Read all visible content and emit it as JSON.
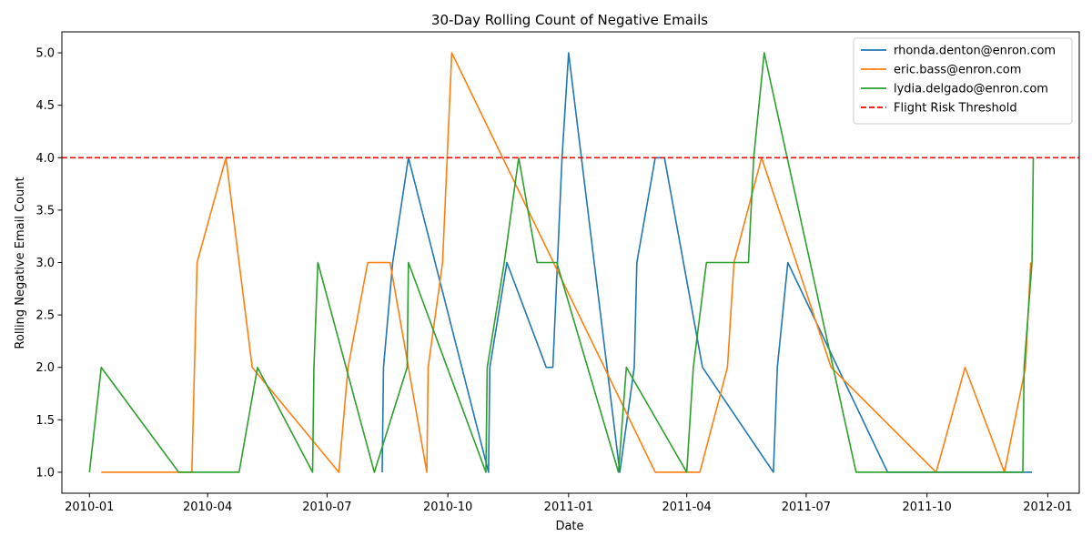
{
  "chart_data": {
    "type": "line",
    "title": "30-Day Rolling Count of Negative Emails",
    "title_icon": "",
    "xlabel": "Date",
    "ylabel": "Rolling Negative Email Count",
    "x_axis": "date",
    "xlim": [
      "2009-12-11",
      "2012-01-25"
    ],
    "ylim": [
      0.8,
      5.2
    ],
    "x_ticks": [
      "2010-01",
      "2010-04",
      "2010-07",
      "2010-10",
      "2011-01",
      "2011-04",
      "2011-07",
      "2011-10",
      "2012-01"
    ],
    "y_ticks": [
      "1.0",
      "1.5",
      "2.0",
      "2.5",
      "3.0",
      "3.5",
      "4.0",
      "4.5",
      "5.0"
    ],
    "grid": false,
    "legend_position": "top-right",
    "series": [
      {
        "name": "rhonda.denton@enron.com",
        "color": "#1f77b4",
        "points": [
          [
            "2010-08-12",
            1
          ],
          [
            "2010-08-13",
            2
          ],
          [
            "2010-08-20",
            3
          ],
          [
            "2010-09-01",
            4
          ],
          [
            "2010-11-01",
            1
          ],
          [
            "2010-11-02",
            2
          ],
          [
            "2010-11-15",
            3
          ],
          [
            "2010-12-15",
            2
          ],
          [
            "2010-12-20",
            2
          ],
          [
            "2010-12-27",
            4
          ],
          [
            "2011-01-01",
            5
          ],
          [
            "2011-02-09",
            1
          ],
          [
            "2011-02-20",
            2
          ],
          [
            "2011-02-22",
            3
          ],
          [
            "2011-03-08",
            4
          ],
          [
            "2011-03-15",
            4
          ],
          [
            "2011-04-13",
            2
          ],
          [
            "2011-06-06",
            1
          ],
          [
            "2011-06-09",
            2
          ],
          [
            "2011-06-17",
            3
          ],
          [
            "2011-09-01",
            1
          ],
          [
            "2011-12-20",
            1
          ]
        ]
      },
      {
        "name": "eric.bass@enron.com",
        "color": "#ff7f0e",
        "points": [
          [
            "2010-01-10",
            1
          ],
          [
            "2010-03-20",
            1
          ],
          [
            "2010-03-24",
            3
          ],
          [
            "2010-04-15",
            4
          ],
          [
            "2010-05-05",
            2
          ],
          [
            "2010-07-10",
            1
          ],
          [
            "2010-07-17",
            2
          ],
          [
            "2010-08-01",
            3
          ],
          [
            "2010-08-18",
            3
          ],
          [
            "2010-09-15",
            1
          ],
          [
            "2010-09-16",
            2
          ],
          [
            "2010-09-27",
            3
          ],
          [
            "2010-10-04",
            5
          ],
          [
            "2011-03-08",
            1
          ],
          [
            "2011-04-11",
            1
          ],
          [
            "2011-05-02",
            2
          ],
          [
            "2011-05-07",
            3
          ],
          [
            "2011-05-28",
            4
          ],
          [
            "2011-07-20",
            2
          ],
          [
            "2011-10-08",
            1
          ],
          [
            "2011-10-30",
            2
          ],
          [
            "2011-11-29",
            1
          ],
          [
            "2011-12-15",
            2
          ],
          [
            "2011-12-19",
            3
          ]
        ]
      },
      {
        "name": "lydia.delgado@enron.com",
        "color": "#2ca02c",
        "points": [
          [
            "2010-01-01",
            1
          ],
          [
            "2010-01-10",
            2
          ],
          [
            "2010-03-10",
            1
          ],
          [
            "2010-04-25",
            1
          ],
          [
            "2010-05-09",
            2
          ],
          [
            "2010-06-20",
            1
          ],
          [
            "2010-06-21",
            2
          ],
          [
            "2010-06-24",
            3
          ],
          [
            "2010-08-06",
            1
          ],
          [
            "2010-08-31",
            2
          ],
          [
            "2010-09-01",
            3
          ],
          [
            "2010-10-30",
            1
          ],
          [
            "2010-10-31",
            2
          ],
          [
            "2010-11-13",
            3
          ],
          [
            "2010-11-24",
            4
          ],
          [
            "2010-12-08",
            3
          ],
          [
            "2010-12-23",
            3
          ],
          [
            "2011-02-08",
            1
          ],
          [
            "2011-02-14",
            2
          ],
          [
            "2011-04-01",
            1
          ],
          [
            "2011-04-06",
            2
          ],
          [
            "2011-04-16",
            3
          ],
          [
            "2011-05-18",
            3
          ],
          [
            "2011-05-22",
            4
          ],
          [
            "2011-05-30",
            5
          ],
          [
            "2011-08-08",
            1
          ],
          [
            "2011-12-13",
            1
          ],
          [
            "2011-12-14",
            2
          ],
          [
            "2011-12-20",
            3
          ],
          [
            "2011-12-21",
            4
          ]
        ]
      }
    ],
    "reference_lines": [
      {
        "name": "Flight Risk Threshold",
        "y": 4.0,
        "color": "#ff0000",
        "style": "dashed"
      }
    ]
  }
}
